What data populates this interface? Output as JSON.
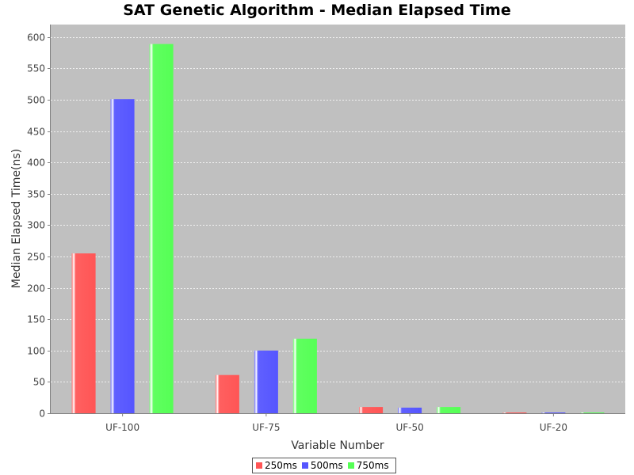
{
  "chart_data": {
    "type": "bar",
    "title": "SAT Genetic Algorithm - Median Elapsed Time",
    "xlabel": "Variable Number",
    "ylabel": "Median Elapsed Time(ns)",
    "categories": [
      "UF-100",
      "UF-75",
      "UF-50",
      "UF-20"
    ],
    "series": [
      {
        "name": "250ms",
        "color": "#ff5555",
        "values": [
          255,
          61,
          10,
          1
        ]
      },
      {
        "name": "500ms",
        "color": "#5555ff",
        "values": [
          501,
          100,
          9,
          1
        ]
      },
      {
        "name": "750ms",
        "color": "#55ff55",
        "values": [
          589,
          119,
          10,
          1
        ]
      }
    ],
    "ylim": [
      0,
      620
    ],
    "yticks": [
      0,
      50,
      100,
      150,
      200,
      250,
      300,
      350,
      400,
      450,
      500,
      550,
      600
    ],
    "grid": true,
    "plot_background": "#c0c0c0",
    "legend_position": "bottom-center"
  }
}
